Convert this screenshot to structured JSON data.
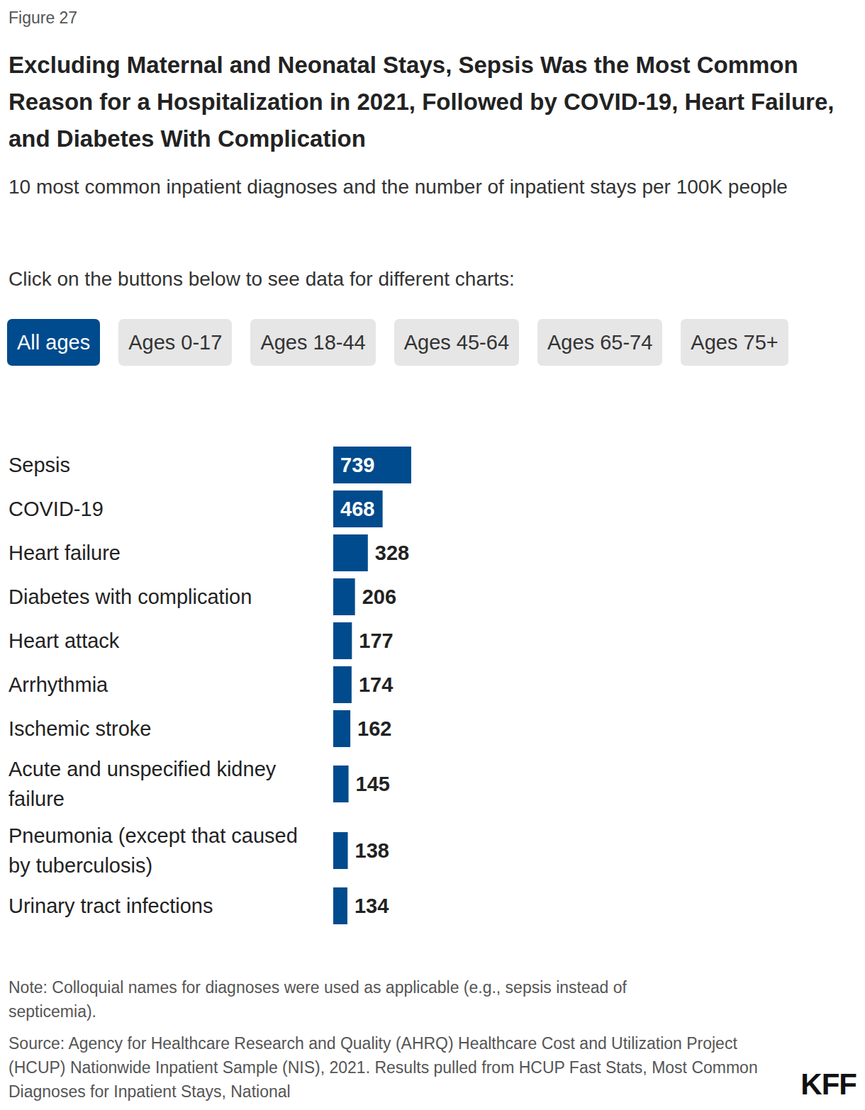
{
  "chart_data": {
    "type": "bar",
    "orientation": "horizontal",
    "figure_label": "Figure 27",
    "title": "Excluding Maternal and Neonatal Stays, Sepsis Was the Most Common Reason for a Hospitalization in 2021, Followed by COVID-19, Heart Failure, and Diabetes With Complication",
    "subtitle": "10 most common inpatient diagnoses and the number of inpatient stays per 100K people",
    "instruction": "Click on the buttons below to see data for different charts:",
    "buttons": [
      "All ages",
      "Ages 0-17",
      "Ages 18-44",
      "Ages 45-64",
      "Ages 65-74",
      "Ages 75+"
    ],
    "categories": [
      "Sepsis",
      "COVID-19",
      "Heart failure",
      "Diabetes with complication",
      "Heart attack",
      "Arrhythmia",
      "Ischemic stroke",
      "Acute and unspecified kidney failure",
      "Pneumonia (except that caused by tuberculosis)",
      "Urinary tract infections"
    ],
    "values": [
      739,
      468,
      328,
      206,
      177,
      174,
      162,
      145,
      138,
      134
    ],
    "color": "#004b8d",
    "xlim": [
      0,
      5000
    ],
    "grid": false,
    "tick_labels": false,
    "data_labels": true,
    "note": "Note: Colloquial names for diagnoses were used as applicable (e.g., sepsis instead of septicemia).",
    "source": "Source: Agency for Healthcare Research and Quality (AHRQ) Healthcare Cost and Utilization Project (HCUP) Nationwide Inpatient Sample (NIS), 2021. Results pulled from HCUP Fast Stats, Most Common Diagnoses for Inpatient Stays, National",
    "brand": "KFF"
  }
}
